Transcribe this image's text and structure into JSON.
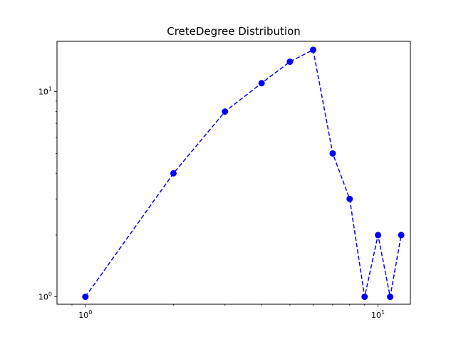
{
  "chart_data": {
    "type": "line",
    "title": "CreteDegree  Distribution",
    "xlabel": "",
    "ylabel": "",
    "x_scale": "log",
    "y_scale": "log",
    "xlim": [
      0.8,
      12.9
    ],
    "ylim": [
      0.92,
      17.6
    ],
    "grid": false,
    "series": [
      {
        "x": [
          1,
          2,
          3,
          4,
          5,
          6,
          7,
          8,
          9,
          10,
          11,
          12
        ],
        "y": [
          1,
          4,
          8,
          11,
          14,
          16,
          5,
          3,
          1,
          2,
          1,
          2
        ],
        "color": "#0000ff",
        "line_style": "dashed",
        "marker": "circle"
      }
    ],
    "x_ticks": [
      {
        "value": 1,
        "base": "10",
        "exp": "0"
      },
      {
        "value": 10,
        "base": "10",
        "exp": "1"
      }
    ],
    "y_ticks": [
      {
        "value": 1,
        "base": "10",
        "exp": "0"
      },
      {
        "value": 10,
        "base": "10",
        "exp": "1"
      }
    ]
  }
}
